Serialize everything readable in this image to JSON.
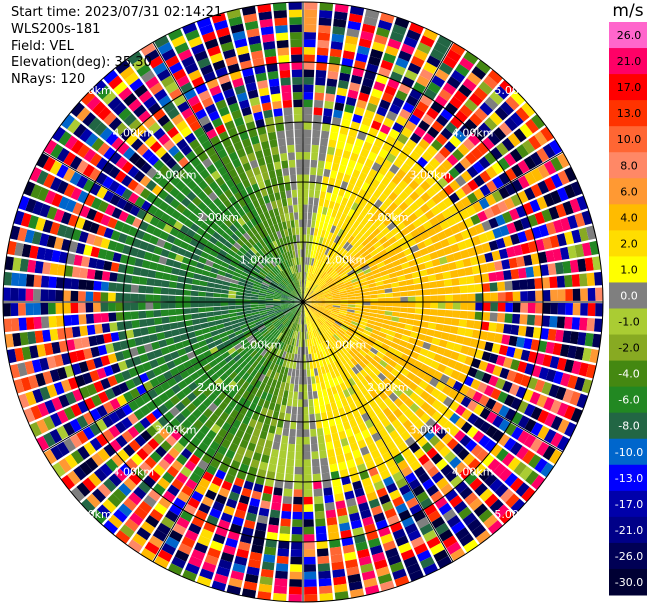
{
  "header": {
    "start_time": "Start time: 2023/07/31 02:14:21",
    "instrument": "WLS200s-181",
    "field": "Field: VEL",
    "elevation": "Elevation(deg): 35.30",
    "nrays": "NRays: 120"
  },
  "colorbar": {
    "unit": "m/s",
    "ticks": [
      "26.0",
      "21.0",
      "17.0",
      "13.0",
      "10.0",
      "8.0",
      "6.0",
      "4.0",
      "2.0",
      "1.0",
      "0.0",
      "-1.0",
      "-2.0",
      "-4.0",
      "-6.0",
      "-8.0",
      "-10.0",
      "-13.0",
      "-17.0",
      "-21.0",
      "-26.0",
      "-30.0"
    ],
    "colors": [
      "#ff66cc",
      "#ff0066",
      "#ff0000",
      "#ff3300",
      "#ff6633",
      "#ff8866",
      "#ff9933",
      "#ffbb00",
      "#ffdd00",
      "#ffff00",
      "#7f7f7f",
      "#aacc33",
      "#88aa22",
      "#448811",
      "#228822",
      "#226644",
      "#0066cc",
      "#0000ff",
      "#0000aa",
      "#000088",
      "#000055",
      "#000033"
    ]
  },
  "chart_data": {
    "type": "heatmap",
    "projection": "polar PPI",
    "field": "VEL",
    "nrays": 120,
    "range_rings_km": [
      1.0,
      2.0,
      3.0,
      4.0,
      5.0
    ],
    "ring_labels": [
      "1.00km",
      "2.00km",
      "3.00km",
      "4.00km",
      "5.00km"
    ],
    "max_range_km": 5.0,
    "vmin": -30.0,
    "vmax": 26.0,
    "pattern": {
      "east_sector_velocity_range": [
        1.0,
        6.0
      ],
      "west_sector_velocity_range": [
        -8.0,
        -1.0
      ],
      "near_zero_band_velocity": 0.0,
      "noise_beyond_km": 3.2
    }
  }
}
